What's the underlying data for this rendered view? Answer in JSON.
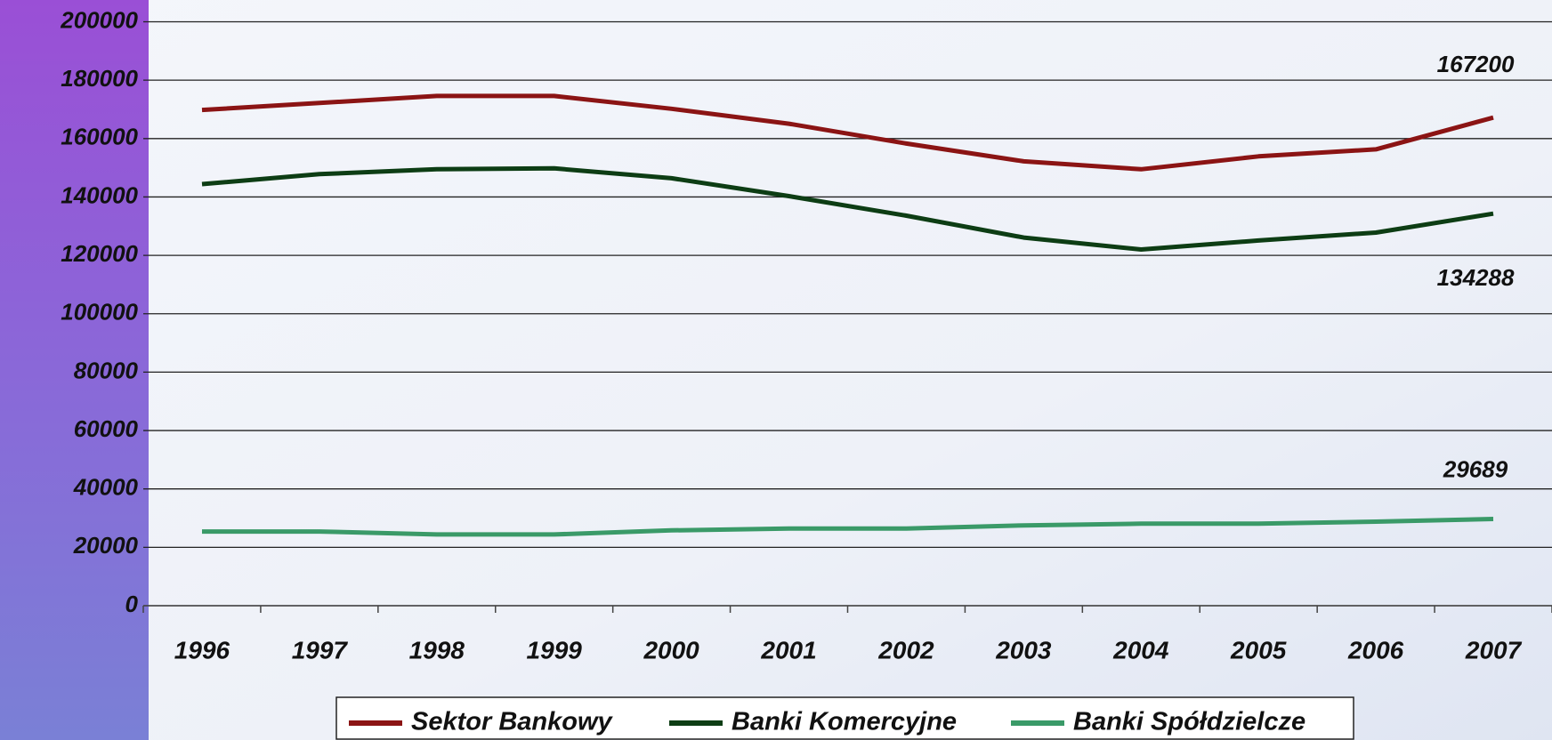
{
  "chart_data": {
    "type": "line",
    "categories": [
      "1996",
      "1997",
      "1998",
      "1999",
      "2000",
      "2001",
      "2002",
      "2003",
      "2004",
      "2005",
      "2006",
      "2007"
    ],
    "series": [
      {
        "name": "Sektor Bankowy",
        "color": "#8b1414",
        "values": [
          169800,
          172200,
          174600,
          174600,
          170200,
          165100,
          158300,
          152200,
          149500,
          153900,
          156300,
          167200
        ]
      },
      {
        "name": "Banki Komercyjne",
        "color": "#0d3d14",
        "values": [
          144400,
          147800,
          149500,
          149800,
          146400,
          140300,
          133600,
          126100,
          122000,
          125100,
          127800,
          134288
        ]
      },
      {
        "name": "Banki Spółdzielcze",
        "color": "#3a9a68",
        "values": [
          25400,
          25400,
          24400,
          24400,
          25800,
          26400,
          26400,
          27500,
          28100,
          28100,
          28800,
          29689
        ]
      }
    ],
    "ylim": [
      0,
      200000
    ],
    "yticks": [
      0,
      20000,
      40000,
      60000,
      80000,
      100000,
      120000,
      140000,
      160000,
      180000,
      200000
    ],
    "grid": true
  }
}
